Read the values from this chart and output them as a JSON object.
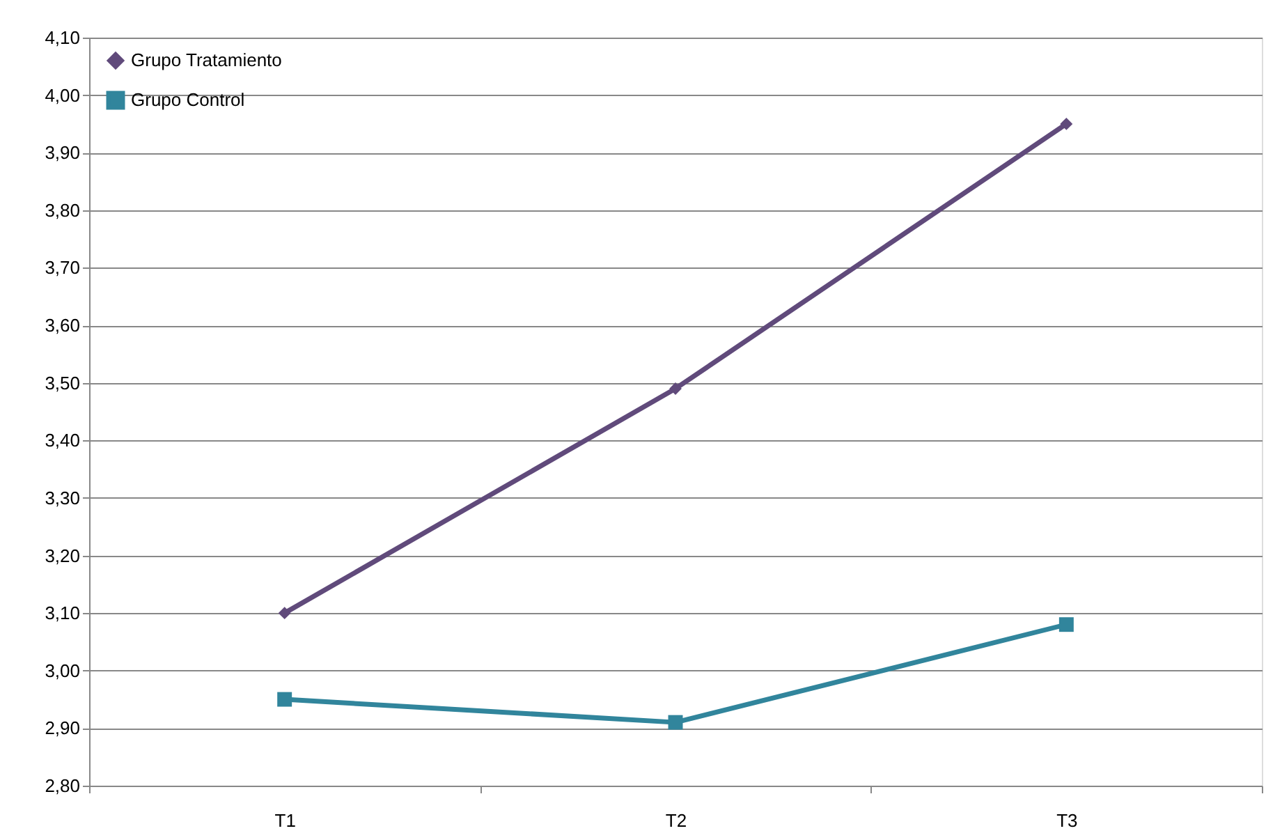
{
  "chart_data": {
    "type": "line",
    "categories": [
      "T1",
      "T2",
      "T3"
    ],
    "series": [
      {
        "name": "Grupo Tratamiento",
        "color": "#604a7b",
        "marker": "diamond",
        "values": [
          3.1,
          3.49,
          3.95
        ]
      },
      {
        "name": "Grupo Control",
        "color": "#31859c",
        "marker": "square",
        "values": [
          2.95,
          2.91,
          3.08
        ]
      }
    ],
    "ylim": [
      2.8,
      4.1
    ],
    "yticks": [
      {
        "value": 2.8,
        "label": "2,80"
      },
      {
        "value": 2.9,
        "label": "2,90"
      },
      {
        "value": 3.0,
        "label": "3,00"
      },
      {
        "value": 3.1,
        "label": "3,10"
      },
      {
        "value": 3.2,
        "label": "3,20"
      },
      {
        "value": 3.3,
        "label": "3,30"
      },
      {
        "value": 3.4,
        "label": "3,40"
      },
      {
        "value": 3.5,
        "label": "3,50"
      },
      {
        "value": 3.6,
        "label": "3,60"
      },
      {
        "value": 3.7,
        "label": "3,70"
      },
      {
        "value": 3.8,
        "label": "3,80"
      },
      {
        "value": 3.9,
        "label": "3,90"
      },
      {
        "value": 4.0,
        "label": "4,00"
      },
      {
        "value": 4.1,
        "label": "4,10"
      }
    ],
    "grid": "y",
    "legend": "top left",
    "line_style": "solid"
  }
}
